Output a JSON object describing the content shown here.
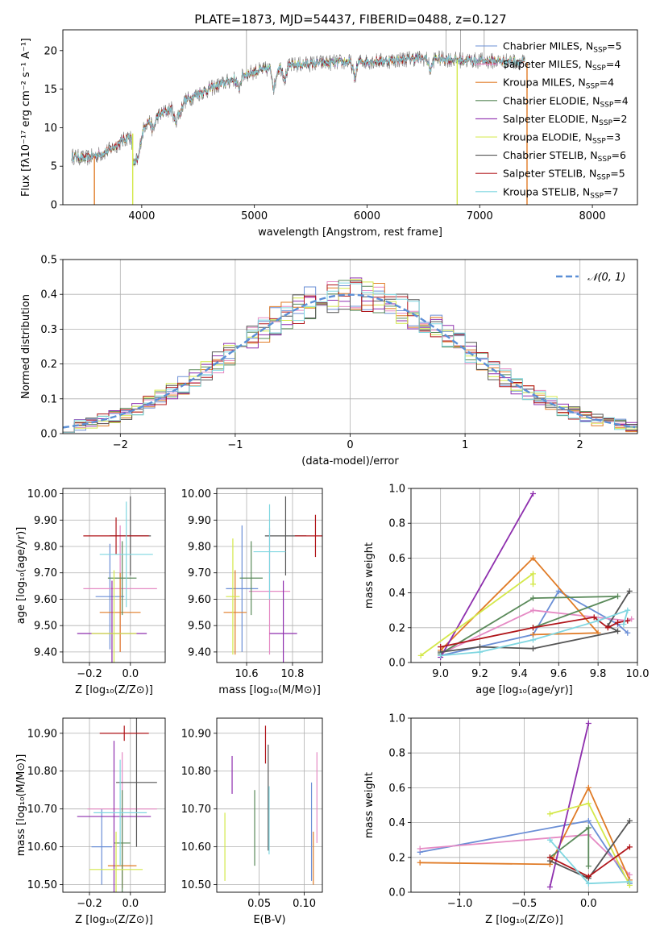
{
  "figure": {
    "title": "PLATE=1873, MJD=54437, FIBERID=0488, z=0.127"
  },
  "colors": {
    "chabrier_miles": "#6b8fd6",
    "salpeter_miles": "#e58ac4",
    "kroupa_miles": "#e07b26",
    "chabrier_elodie": "#5a8a5a",
    "salpeter_elodie": "#8e2fae",
    "kroupa_elodie": "#d4e84a",
    "chabrier_stelib": "#555555",
    "salpeter_stelib": "#b0151a",
    "kroupa_stelib": "#7fd6e0"
  },
  "chart_data": [
    {
      "id": "spectrum",
      "type": "line",
      "xlabel": "wavelength [Angstrom, rest frame]",
      "ylabel": "Flux [fλ10⁻¹⁷ erg cm⁻² s⁻¹ A⁻¹]",
      "xlim": [
        3300,
        8400
      ],
      "ylim": [
        0,
        22.7
      ],
      "xticks": [
        4000,
        5000,
        6000,
        7000,
        8000
      ],
      "yticks": [
        0,
        5,
        10,
        15,
        20
      ],
      "grid": false,
      "legend_position": "top-right",
      "series": [
        {
          "name": "Chabrier MILES, N",
          "sub": "SSP",
          "suffix": "=5",
          "color_key": "chabrier_miles"
        },
        {
          "name": "Salpeter MILES, N",
          "sub": "SSP",
          "suffix": "=4",
          "color_key": "salpeter_miles"
        },
        {
          "name": "Kroupa MILES, N",
          "sub": "SSP",
          "suffix": "=4",
          "color_key": "kroupa_miles"
        },
        {
          "name": "Chabrier ELODIE, N",
          "sub": "SSP",
          "suffix": "=4",
          "color_key": "chabrier_elodie"
        },
        {
          "name": "Salpeter ELODIE, N",
          "sub": "SSP",
          "suffix": "=2",
          "color_key": "salpeter_elodie"
        },
        {
          "name": "Kroupa ELODIE, N",
          "sub": "SSP",
          "suffix": "=3",
          "color_key": "kroupa_elodie"
        },
        {
          "name": "Chabrier STELIB, N",
          "sub": "SSP",
          "suffix": "=6",
          "color_key": "chabrier_stelib"
        },
        {
          "name": "Salpeter STELIB, N",
          "sub": "SSP",
          "suffix": "=5",
          "color_key": "salpeter_stelib"
        },
        {
          "name": "Kroupa STELIB, N",
          "sub": "SSP",
          "suffix": "=7",
          "color_key": "kroupa_stelib"
        }
      ],
      "continuum": {
        "x": [
          3380,
          3500,
          3600,
          3700,
          3800,
          3900,
          4000,
          4100,
          4200,
          4300,
          4400,
          4500,
          4600,
          4700,
          4800,
          4900,
          5000,
          5200,
          5400,
          5600,
          5800,
          6000,
          6200,
          6400,
          6600,
          6800,
          7000,
          7200,
          7300,
          7400
        ],
        "y": [
          6.3,
          6.0,
          6.4,
          7.0,
          8.0,
          9.0,
          10.2,
          11.2,
          12.0,
          12.8,
          13.6,
          14.4,
          15.0,
          15.6,
          16.2,
          16.8,
          17.3,
          17.8,
          18.2,
          18.4,
          18.5,
          18.6,
          18.7,
          19.0,
          19.0,
          18.8,
          18.7,
          18.6,
          18.6,
          18.5
        ]
      },
      "drops": [
        {
          "x": 3580,
          "color_key": "kroupa_miles"
        },
        {
          "x": 3920,
          "color_key": "kroupa_elodie"
        },
        {
          "x": 6800,
          "color_key": "kroupa_elodie"
        },
        {
          "x": 7420,
          "color_key": "kroupa_miles"
        }
      ]
    },
    {
      "id": "residuals",
      "type": "step",
      "xlabel": "(data-model)/error",
      "ylabel": "Normed distribution",
      "xlim": [
        -2.5,
        2.5
      ],
      "ylim": [
        0,
        0.5
      ],
      "xticks": [
        -2,
        -1,
        0,
        1,
        2
      ],
      "yticks": [
        0.0,
        0.1,
        0.2,
        0.3,
        0.4,
        0.5
      ],
      "grid": true,
      "legend_position": "top-right",
      "reference": {
        "name": "𝒩(0, 1)",
        "color": "#5b8fd6"
      },
      "bin_width": 0.1
    },
    {
      "id": "age_vs_Z",
      "type": "errorbar",
      "xlabel": "Z [log₁₀(Z/Z⊙)]",
      "ylabel": "age  [log₁₀(age/yr)]",
      "xlim": [
        -0.33,
        0.17
      ],
      "ylim": [
        9.36,
        10.02
      ],
      "xticks": [
        -0.2,
        0.0
      ],
      "yticks": [
        9.4,
        9.5,
        9.6,
        9.7,
        9.8,
        9.9,
        10.0
      ],
      "grid": true,
      "points": [
        {
          "color_key": "chabrier_miles",
          "x": -0.1,
          "xerr": 0.07,
          "y": 9.61,
          "yerr": 0.2
        },
        {
          "color_key": "salpeter_miles",
          "x": -0.05,
          "xerr": 0.18,
          "y": 9.64,
          "yerr": 0.24
        },
        {
          "color_key": "kroupa_miles",
          "x": -0.05,
          "xerr": 0.1,
          "y": 9.55,
          "yerr": 0.15
        },
        {
          "color_key": "chabrier_elodie",
          "x": -0.04,
          "xerr": 0.07,
          "y": 9.68,
          "yerr": 0.14
        },
        {
          "color_key": "salpeter_elodie",
          "x": -0.09,
          "xerr": 0.17,
          "y": 9.47,
          "yerr": 0.2
        },
        {
          "color_key": "kroupa_elodie",
          "x": -0.08,
          "xerr": 0.11,
          "y": 9.47,
          "yerr": 0.24
        },
        {
          "color_key": "chabrier_stelib",
          "x": 0.0,
          "xerr": 0.1,
          "y": 9.84,
          "yerr": 0.15
        },
        {
          "color_key": "salpeter_stelib",
          "x": -0.07,
          "xerr": 0.16,
          "y": 9.84,
          "yerr": 0.07
        },
        {
          "color_key": "kroupa_stelib",
          "x": -0.02,
          "xerr": 0.13,
          "y": 9.77,
          "yerr": 0.2
        }
      ]
    },
    {
      "id": "age_vs_mass",
      "type": "errorbar",
      "xlabel": "mass [log₁₀(M/M⊙)]",
      "ylabel": "",
      "xlim": [
        10.47,
        10.93
      ],
      "ylim": [
        9.36,
        10.02
      ],
      "xticks": [
        10.6,
        10.8
      ],
      "yticks": [
        9.4,
        9.5,
        9.6,
        9.7,
        9.8,
        9.9,
        10.0
      ],
      "grid": true,
      "points": [
        {
          "color_key": "chabrier_miles",
          "x": 10.58,
          "xerr": 0.07,
          "y": 9.64,
          "yerr": 0.24
        },
        {
          "color_key": "salpeter_miles",
          "x": 10.7,
          "xerr": 0.09,
          "y": 9.63,
          "yerr": 0.24
        },
        {
          "color_key": "kroupa_miles",
          "x": 10.55,
          "xerr": 0.05,
          "y": 9.55,
          "yerr": 0.16
        },
        {
          "color_key": "chabrier_elodie",
          "x": 10.62,
          "xerr": 0.05,
          "y": 9.68,
          "yerr": 0.14
        },
        {
          "color_key": "salpeter_elodie",
          "x": 10.76,
          "xerr": 0.06,
          "y": 9.47,
          "yerr": 0.2
        },
        {
          "color_key": "kroupa_elodie",
          "x": 10.54,
          "xerr": 0.03,
          "y": 9.61,
          "yerr": 0.22
        },
        {
          "color_key": "chabrier_stelib",
          "x": 10.77,
          "xerr": 0.09,
          "y": 9.84,
          "yerr": 0.15
        },
        {
          "color_key": "salpeter_stelib",
          "x": 10.9,
          "xerr": 0.09,
          "y": 9.84,
          "yerr": 0.08
        },
        {
          "color_key": "kroupa_stelib",
          "x": 10.7,
          "xerr": 0.07,
          "y": 9.78,
          "yerr": 0.18
        }
      ]
    },
    {
      "id": "weight_vs_age",
      "type": "line",
      "xlabel": "age  [log₁₀(age/yr)]",
      "ylabel": "mass weight",
      "xlim": [
        8.85,
        10.0
      ],
      "ylim": [
        0,
        1.0
      ],
      "xticks": [
        9.0,
        9.2,
        9.4,
        9.6,
        9.8,
        10.0
      ],
      "yticks": [
        0.0,
        0.2,
        0.4,
        0.6,
        0.8,
        1.0
      ],
      "grid": true,
      "series": [
        {
          "color_key": "chabrier_miles",
          "x": [
            9.0,
            9.47,
            9.6,
            9.9,
            9.95
          ],
          "y": [
            0.04,
            0.16,
            0.41,
            0.22,
            0.17
          ]
        },
        {
          "color_key": "salpeter_miles",
          "x": [
            9.0,
            9.47,
            9.95,
            9.97
          ],
          "y": [
            0.05,
            0.3,
            0.24,
            0.25
          ]
        },
        {
          "color_key": "kroupa_miles",
          "x": [
            9.0,
            9.47,
            9.8,
            9.47
          ],
          "y": [
            0.07,
            0.6,
            0.17,
            0.16
          ]
        },
        {
          "color_key": "chabrier_elodie",
          "x": [
            9.0,
            9.47,
            9.9,
            9.47
          ],
          "y": [
            0.05,
            0.37,
            0.38,
            0.2
          ]
        },
        {
          "color_key": "salpeter_elodie",
          "x": [
            9.0,
            9.47
          ],
          "y": [
            0.03,
            0.97
          ]
        },
        {
          "color_key": "kroupa_elodie",
          "x": [
            8.9,
            9.47,
            9.47
          ],
          "y": [
            0.04,
            0.51,
            0.45
          ]
        },
        {
          "color_key": "chabrier_stelib",
          "x": [
            9.0,
            9.2,
            9.47,
            9.9,
            9.85,
            9.96
          ],
          "y": [
            0.06,
            0.09,
            0.08,
            0.18,
            0.21,
            0.41
          ]
        },
        {
          "color_key": "salpeter_stelib",
          "x": [
            9.0,
            9.47,
            9.78,
            9.85,
            9.9,
            9.95
          ],
          "y": [
            0.09,
            0.2,
            0.26,
            0.2,
            0.23,
            0.24
          ]
        },
        {
          "color_key": "kroupa_stelib",
          "x": [
            9.0,
            9.2,
            9.47,
            9.8,
            9.95,
            9.93
          ],
          "y": [
            0.04,
            0.06,
            0.13,
            0.24,
            0.3,
            0.22
          ]
        }
      ]
    },
    {
      "id": "mass_vs_Z",
      "type": "errorbar",
      "xlabel": "Z [log₁₀(Z/Z⊙)]",
      "ylabel": "mass [log₁₀(M/M⊙)]",
      "xlim": [
        -0.33,
        0.17
      ],
      "ylim": [
        10.48,
        10.94
      ],
      "xticks": [
        -0.2,
        0.0
      ],
      "yticks": [
        10.5,
        10.6,
        10.7,
        10.8,
        10.9
      ],
      "grid": true,
      "points": [
        {
          "color_key": "chabrier_miles",
          "x": -0.14,
          "xerr": 0.05,
          "y": 10.6,
          "yerr": 0.1
        },
        {
          "color_key": "salpeter_miles",
          "x": -0.04,
          "xerr": 0.17,
          "y": 10.7,
          "yerr": 0.15
        },
        {
          "color_key": "kroupa_miles",
          "x": -0.04,
          "xerr": 0.07,
          "y": 10.55,
          "yerr": 0.06
        },
        {
          "color_key": "chabrier_elodie",
          "x": -0.04,
          "xerr": 0.04,
          "y": 10.61,
          "yerr": 0.14
        },
        {
          "color_key": "salpeter_elodie",
          "x": -0.08,
          "xerr": 0.18,
          "y": 10.68,
          "yerr": 0.2
        },
        {
          "color_key": "kroupa_elodie",
          "x": -0.07,
          "xerr": 0.13,
          "y": 10.54,
          "yerr": 0.1
        },
        {
          "color_key": "chabrier_stelib",
          "x": 0.03,
          "xerr": 0.1,
          "y": 10.77,
          "yerr": 0.17
        },
        {
          "color_key": "salpeter_stelib",
          "x": -0.03,
          "xerr": 0.12,
          "y": 10.9,
          "yerr": 0.02
        },
        {
          "color_key": "kroupa_stelib",
          "x": -0.05,
          "xerr": 0.13,
          "y": 10.69,
          "yerr": 0.14
        }
      ]
    },
    {
      "id": "mass_vs_EBV",
      "type": "errorbar",
      "xlabel": "E(B-V)",
      "ylabel": "",
      "xlim": [
        0.003,
        0.12
      ],
      "ylim": [
        10.48,
        10.94
      ],
      "xticks": [
        0.05,
        0.1
      ],
      "yticks": [
        10.5,
        10.6,
        10.7,
        10.8,
        10.9
      ],
      "grid": true,
      "points": [
        {
          "color_key": "chabrier_miles",
          "x": 0.108,
          "y": 10.64,
          "yerr": 0.13
        },
        {
          "color_key": "salpeter_miles",
          "x": 0.114,
          "y": 10.73,
          "yerr": 0.12
        },
        {
          "color_key": "kroupa_miles",
          "x": 0.11,
          "y": 10.57,
          "yerr": 0.07
        },
        {
          "color_key": "chabrier_elodie",
          "x": 0.045,
          "y": 10.65,
          "yerr": 0.1
        },
        {
          "color_key": "salpeter_elodie",
          "x": 0.02,
          "y": 10.79,
          "yerr": 0.05
        },
        {
          "color_key": "kroupa_elodie",
          "x": 0.012,
          "y": 10.6,
          "yerr": 0.09
        },
        {
          "color_key": "chabrier_stelib",
          "x": 0.06,
          "y": 10.73,
          "yerr": 0.14
        },
        {
          "color_key": "salpeter_stelib",
          "x": 0.057,
          "y": 10.87,
          "yerr": 0.05
        },
        {
          "color_key": "kroupa_stelib",
          "x": 0.061,
          "y": 10.67,
          "yerr": 0.09
        }
      ]
    },
    {
      "id": "weight_vs_Z",
      "type": "line",
      "xlabel": "Z [log₁₀(Z/Z⊙)]",
      "ylabel": "mass weight",
      "xlim": [
        -1.38,
        0.38
      ],
      "ylim": [
        0,
        1.0
      ],
      "xticks": [
        -1.0,
        -0.5,
        0.0
      ],
      "yticks": [
        0.0,
        0.2,
        0.4,
        0.6,
        0.8,
        1.0
      ],
      "grid": true,
      "series": [
        {
          "color_key": "chabrier_miles",
          "x": [
            -1.31,
            0.0,
            0.32
          ],
          "y": [
            0.23,
            0.41,
            0.05
          ]
        },
        {
          "color_key": "salpeter_miles",
          "x": [
            -1.31,
            0.0,
            0.32
          ],
          "y": [
            0.25,
            0.33,
            0.1
          ]
        },
        {
          "color_key": "kroupa_miles",
          "x": [
            -1.31,
            -0.3,
            0.0,
            0.32
          ],
          "y": [
            0.17,
            0.16,
            0.6,
            0.07
          ]
        },
        {
          "color_key": "chabrier_elodie",
          "x": [
            -0.3,
            0.0,
            0.0
          ],
          "y": [
            0.2,
            0.37,
            0.15
          ]
        },
        {
          "color_key": "salpeter_elodie",
          "x": [
            -0.3,
            0.0
          ],
          "y": [
            0.03,
            0.97
          ]
        },
        {
          "color_key": "kroupa_elodie",
          "x": [
            -0.3,
            0.0,
            0.32
          ],
          "y": [
            0.45,
            0.51,
            0.04
          ]
        },
        {
          "color_key": "chabrier_stelib",
          "x": [
            -0.3,
            0.0,
            0.32
          ],
          "y": [
            0.18,
            0.08,
            0.41
          ]
        },
        {
          "color_key": "salpeter_stelib",
          "x": [
            -0.3,
            0.0,
            0.32
          ],
          "y": [
            0.2,
            0.09,
            0.26
          ]
        },
        {
          "color_key": "kroupa_stelib",
          "x": [
            -0.3,
            0.0,
            0.32
          ],
          "y": [
            0.3,
            0.05,
            0.06
          ]
        }
      ]
    }
  ]
}
